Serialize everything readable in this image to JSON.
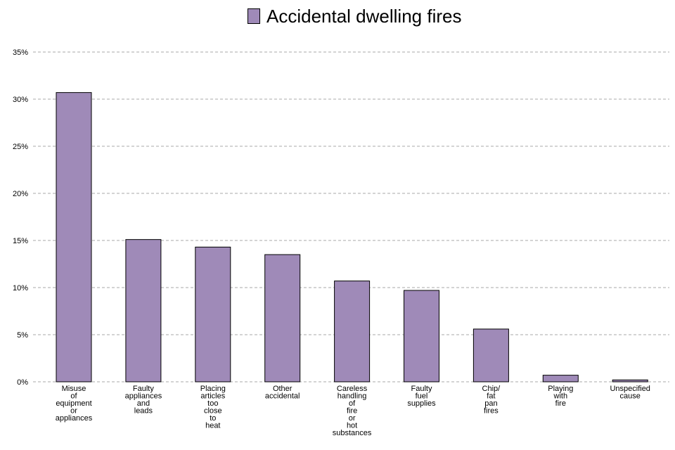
{
  "chart_data": {
    "type": "bar",
    "title": "",
    "xlabel": "",
    "ylabel": "",
    "categories": [
      "Misuse of equipment or appliances",
      "Faulty appliances and leads",
      "Placing articles too close to heat",
      "Other accidental",
      "Careless handling of fire or hot substances",
      "Faulty fuel supplies",
      "Chip/ fat pan fires",
      "Playing with fire",
      "Unspecified cause"
    ],
    "series": [
      {
        "name": "Accidental dwelling fires",
        "values": [
          30.7,
          15.1,
          14.3,
          13.5,
          10.7,
          9.7,
          5.6,
          0.7,
          0.2
        ]
      }
    ],
    "ylim": [
      0,
      35
    ],
    "yticks": [
      "0%",
      "5%",
      "10%",
      "15%",
      "20%",
      "25%",
      "30%",
      "35%"
    ],
    "ytick_values": [
      0,
      5,
      10,
      15,
      20,
      25,
      30,
      35
    ],
    "grid": true,
    "legend_position": "top-center",
    "bar_color": "#9f8ab8"
  }
}
